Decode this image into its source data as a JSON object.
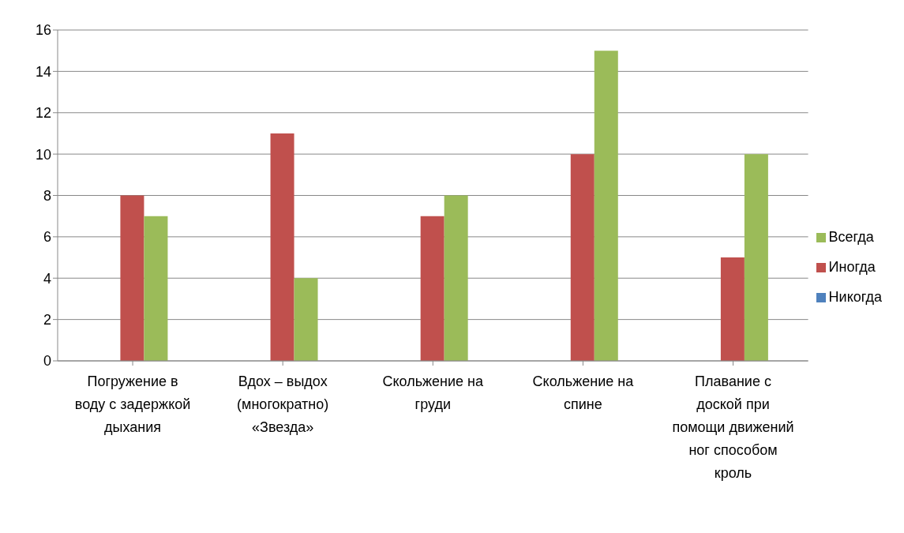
{
  "chart_data": {
    "type": "bar",
    "categories": [
      "Погружение в воду с задержкой дыхания",
      "Вдох – выдох (многократно) «Звезда»",
      "Скольжение на груди",
      "Скольжение на спине",
      "Плавание с доской при помощи движений ног способом кроль"
    ],
    "series": [
      {
        "name": "Никогда",
        "color": "#4f81bd",
        "values": [
          0,
          0,
          0,
          0,
          0
        ]
      },
      {
        "name": "Иногда",
        "color": "#c0504d",
        "values": [
          8,
          11,
          7,
          10,
          5
        ]
      },
      {
        "name": "Всегда",
        "color": "#9bbb59",
        "values": [
          7,
          4,
          8,
          15,
          10
        ]
      }
    ],
    "ylim": [
      0,
      16
    ],
    "yticks": [
      0,
      2,
      4,
      6,
      8,
      10,
      12,
      14,
      16
    ],
    "grid": "y",
    "legend": "right"
  }
}
